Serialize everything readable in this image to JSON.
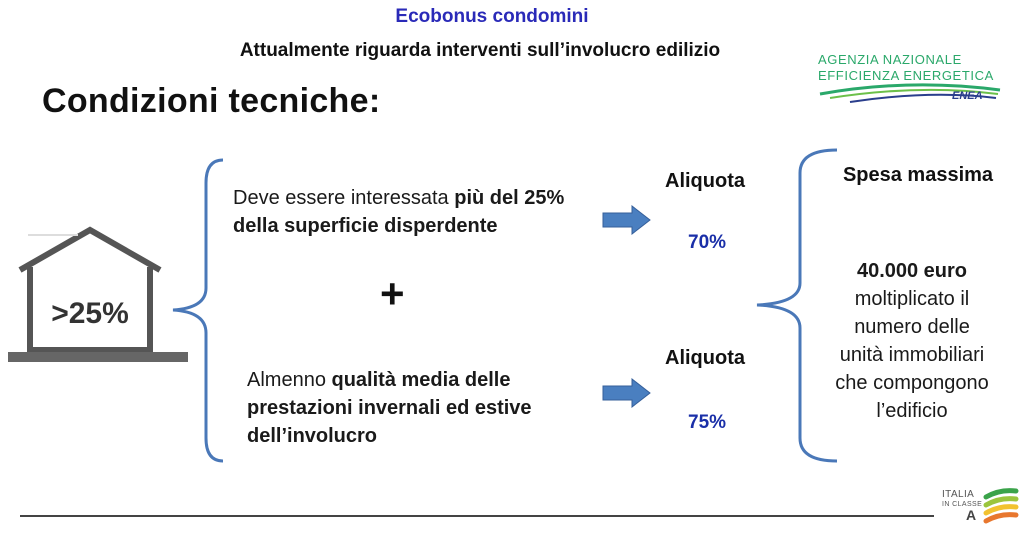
{
  "header": {
    "title": "Ecobonus condomini",
    "subtitle": "Attualmente riguarda interventi sull’involucro edilizio",
    "heading": "Condizioni tecniche:"
  },
  "enea_logo": {
    "line1": "AGENZIA NAZIONALE",
    "line2": "EFFICIENZA ENERGETICA",
    "word": "ENEA",
    "color": "#2aa86a"
  },
  "house_icon": {
    "label": ">25%"
  },
  "condition1": {
    "text_plain": "Deve essere interessata ",
    "text_bold": "più del 25% della superficie disperdente"
  },
  "plus": "+",
  "condition2": {
    "text_plain": "Almenno ",
    "text_bold": "qualità media delle prestazioni invernali ed estive dell’involucro"
  },
  "rate1": {
    "label": "Aliquota",
    "value": "70%"
  },
  "rate2": {
    "label": "Aliquota",
    "value": "75%"
  },
  "max_expense": {
    "title": "Spesa massima",
    "amount": "40.000 euro",
    "lines": [
      "moltiplicato il",
      "numero delle",
      "unità immobiliari",
      "che compongono",
      "l’edificio"
    ]
  },
  "italia_logo": {
    "line1": "ITALIA",
    "line2": "IN CLASSE",
    "line3": "A"
  },
  "colors": {
    "title_blue": "#2a2ab8",
    "rate_blue": "#1a2fa8",
    "brace_blue": "#4a78b8",
    "arrow_blue": "#4a7fc0"
  }
}
